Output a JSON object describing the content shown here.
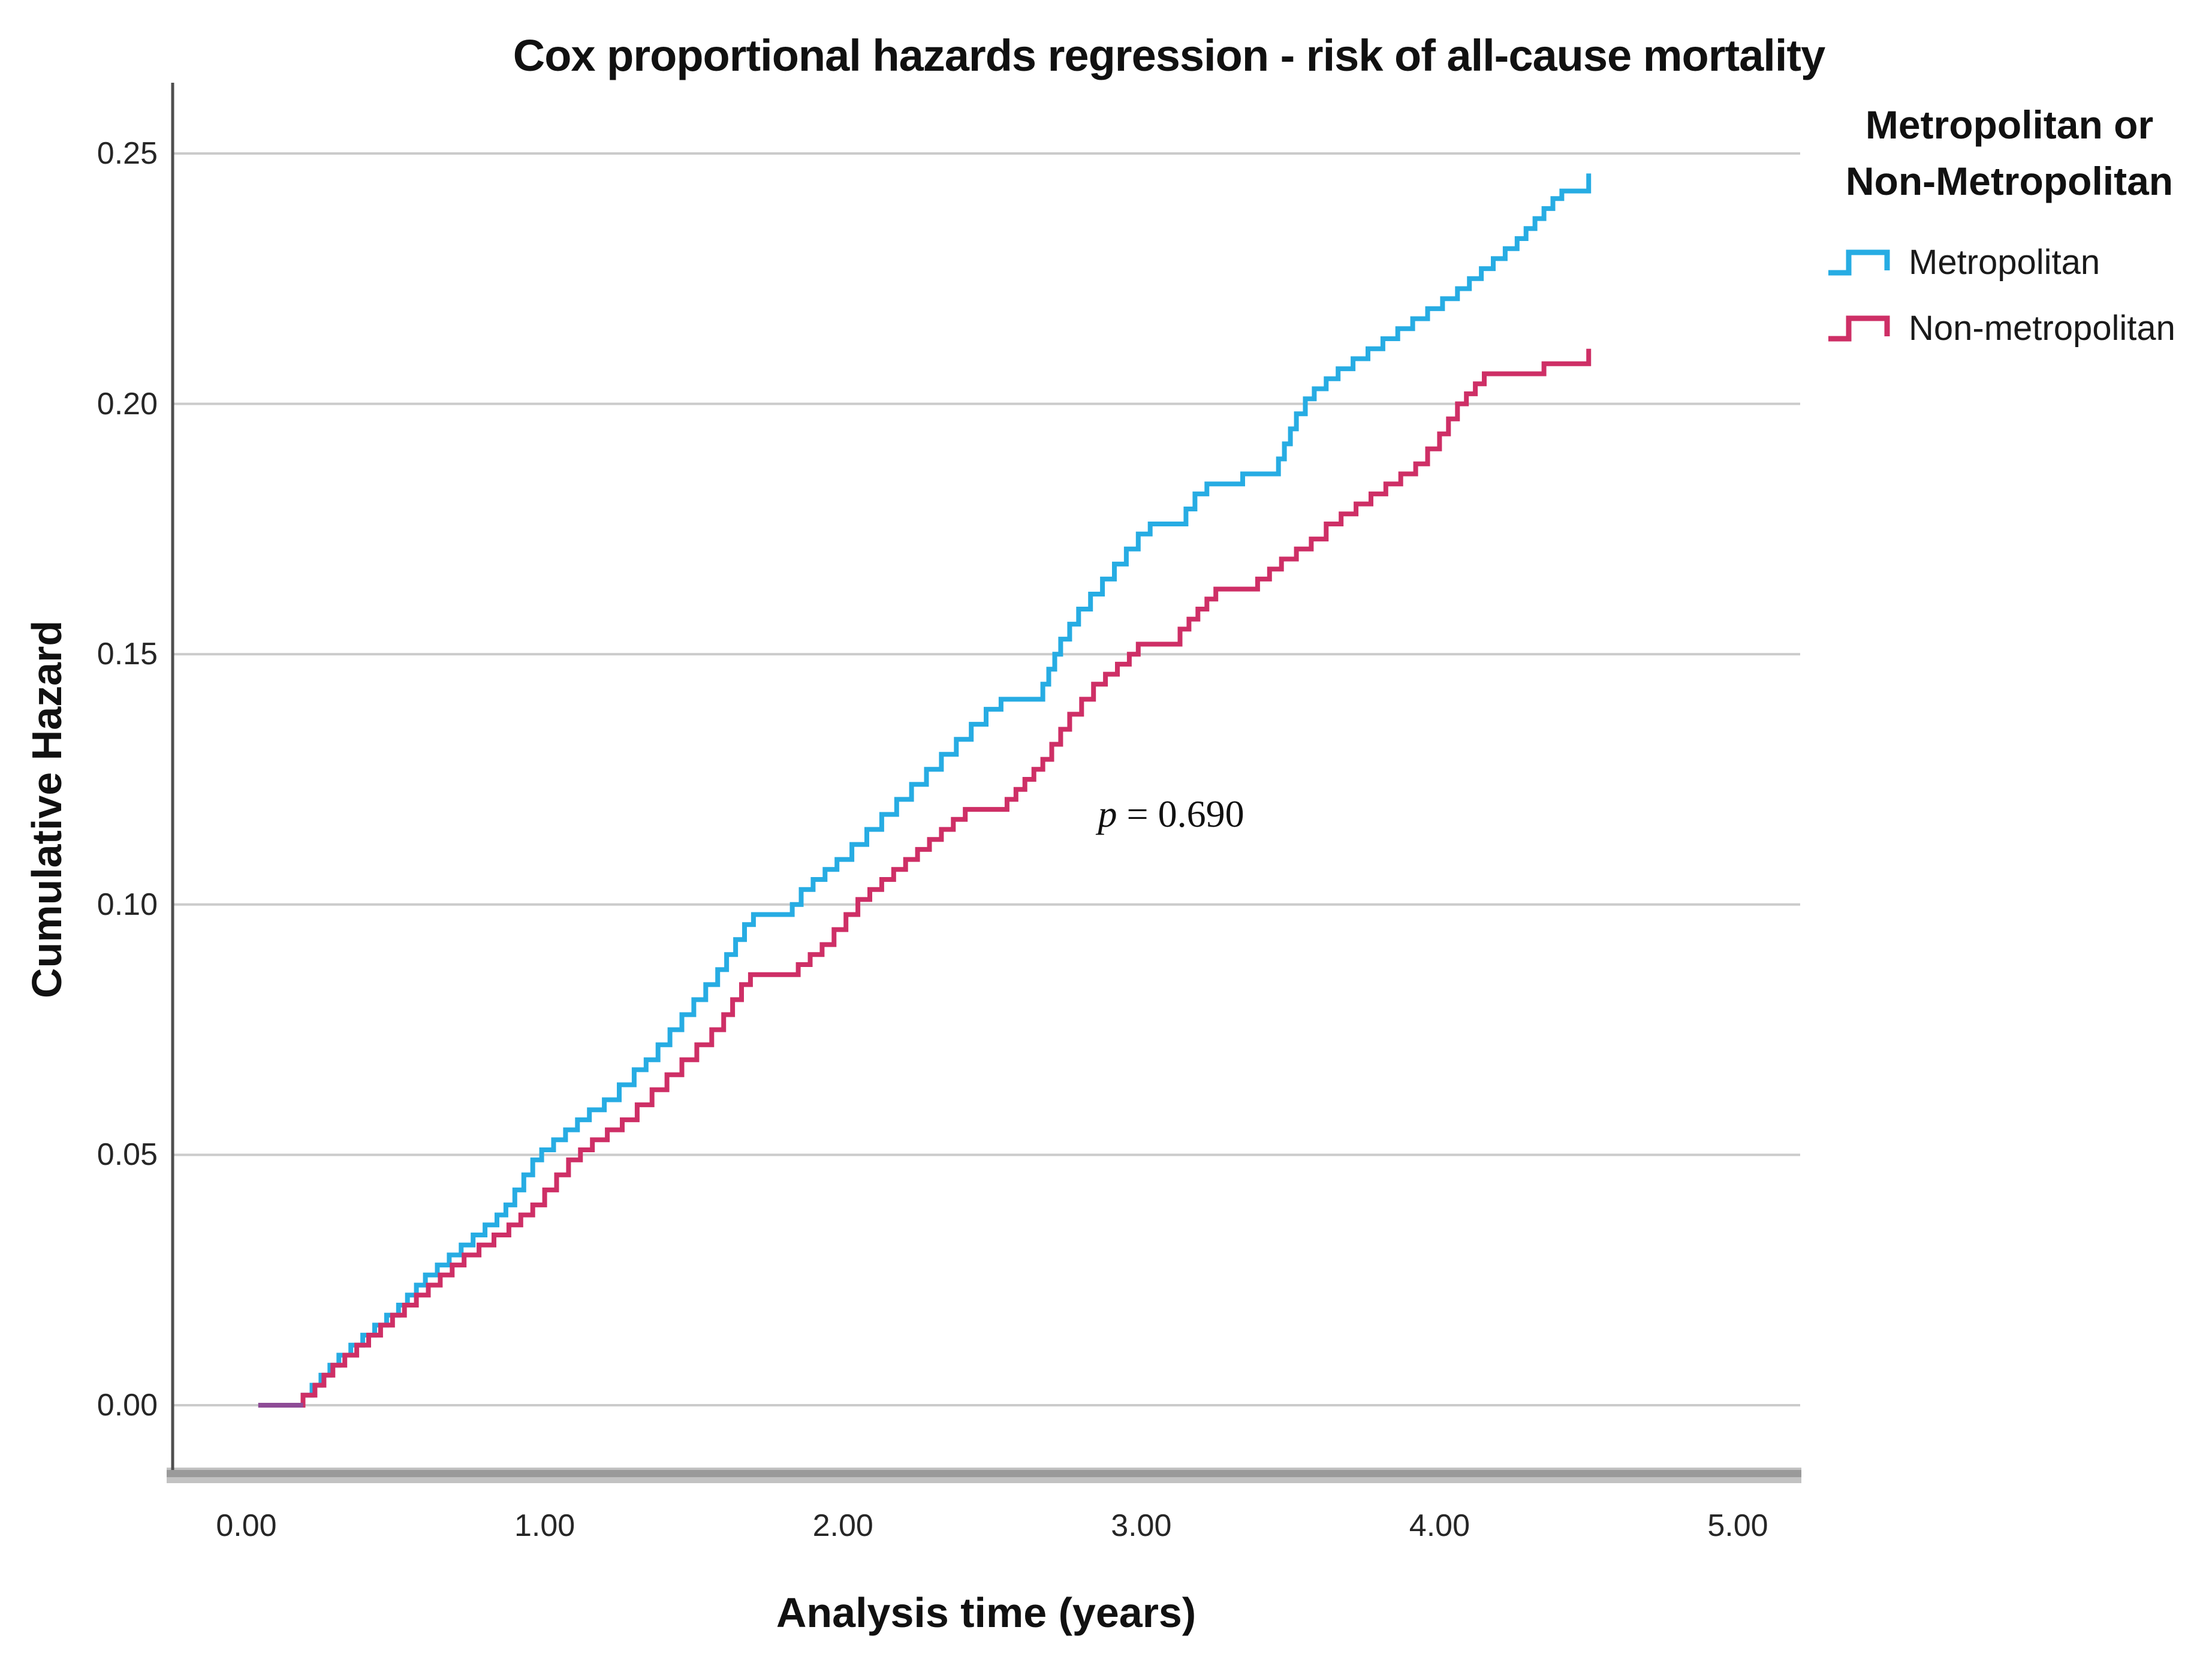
{
  "chart_data": {
    "type": "line",
    "subtype": "step",
    "title": "Cox proportional hazards regression - risk of all-cause mortality",
    "xlabel": "Analysis time (years)",
    "ylabel": "Cumulative Hazard",
    "xlim": [
      -0.25,
      5.6
    ],
    "ylim": [
      -0.014,
      0.264
    ],
    "grid": "horizontal-only",
    "x_ticks": [
      "0.00",
      "1.00",
      "2.00",
      "3.00",
      "4.00",
      "5.00"
    ],
    "x_tick_values": [
      0,
      1,
      2,
      3,
      4,
      5
    ],
    "y_ticks": [
      "0.00",
      "0.05",
      "0.10",
      "0.15",
      "0.20",
      "0.25"
    ],
    "y_tick_values": [
      0,
      0.05,
      0.1,
      0.15,
      0.2,
      0.25
    ],
    "grid_color": "#cbcbcb",
    "axis_color": "#4f4f4f",
    "axis_bar_color": "#9a9a9a",
    "annotation": {
      "text": "p = 0.690",
      "prefix": "p",
      "rest": " = 0.690",
      "x": 3.1,
      "y": 0.118
    },
    "legend": {
      "position": "right",
      "title_lines": [
        "Metropolitan or",
        "Non-Metropolitan"
      ],
      "entries": [
        {
          "label": "Metropolitan",
          "color": "#27ACE3"
        },
        {
          "label": "Non-metropolitan",
          "color": "#CE2F66"
        }
      ]
    },
    "overlap": {
      "x_start": 0.04,
      "x_end": 0.19,
      "y": 0,
      "color": "#8E4B96"
    },
    "series": [
      {
        "name": "Metropolitan",
        "color": "#27ACE3",
        "points": [
          [
            0.04,
            0.0
          ],
          [
            0.19,
            0.002
          ],
          [
            0.22,
            0.004
          ],
          [
            0.25,
            0.006
          ],
          [
            0.28,
            0.008
          ],
          [
            0.31,
            0.01
          ],
          [
            0.35,
            0.012
          ],
          [
            0.39,
            0.014
          ],
          [
            0.43,
            0.016
          ],
          [
            0.47,
            0.018
          ],
          [
            0.51,
            0.02
          ],
          [
            0.54,
            0.022
          ],
          [
            0.57,
            0.024
          ],
          [
            0.6,
            0.026
          ],
          [
            0.64,
            0.028
          ],
          [
            0.68,
            0.03
          ],
          [
            0.72,
            0.032
          ],
          [
            0.76,
            0.034
          ],
          [
            0.8,
            0.036
          ],
          [
            0.84,
            0.038
          ],
          [
            0.87,
            0.04
          ],
          [
            0.9,
            0.043
          ],
          [
            0.93,
            0.046
          ],
          [
            0.96,
            0.049
          ],
          [
            0.99,
            0.051
          ],
          [
            1.03,
            0.053
          ],
          [
            1.07,
            0.055
          ],
          [
            1.11,
            0.057
          ],
          [
            1.15,
            0.059
          ],
          [
            1.2,
            0.061
          ],
          [
            1.25,
            0.064
          ],
          [
            1.3,
            0.067
          ],
          [
            1.34,
            0.069
          ],
          [
            1.38,
            0.072
          ],
          [
            1.42,
            0.075
          ],
          [
            1.46,
            0.078
          ],
          [
            1.5,
            0.081
          ],
          [
            1.54,
            0.084
          ],
          [
            1.58,
            0.087
          ],
          [
            1.61,
            0.09
          ],
          [
            1.64,
            0.093
          ],
          [
            1.67,
            0.096
          ],
          [
            1.7,
            0.098
          ],
          [
            1.83,
            0.1
          ],
          [
            1.86,
            0.103
          ],
          [
            1.9,
            0.105
          ],
          [
            1.94,
            0.107
          ],
          [
            1.98,
            0.109
          ],
          [
            2.03,
            0.112
          ],
          [
            2.08,
            0.115
          ],
          [
            2.13,
            0.118
          ],
          [
            2.18,
            0.121
          ],
          [
            2.23,
            0.124
          ],
          [
            2.28,
            0.127
          ],
          [
            2.33,
            0.13
          ],
          [
            2.38,
            0.133
          ],
          [
            2.43,
            0.136
          ],
          [
            2.48,
            0.139
          ],
          [
            2.53,
            0.141
          ],
          [
            2.67,
            0.144
          ],
          [
            2.69,
            0.147
          ],
          [
            2.71,
            0.15
          ],
          [
            2.73,
            0.153
          ],
          [
            2.76,
            0.156
          ],
          [
            2.79,
            0.159
          ],
          [
            2.83,
            0.162
          ],
          [
            2.87,
            0.165
          ],
          [
            2.91,
            0.168
          ],
          [
            2.95,
            0.171
          ],
          [
            2.99,
            0.174
          ],
          [
            3.03,
            0.176
          ],
          [
            3.15,
            0.179
          ],
          [
            3.18,
            0.182
          ],
          [
            3.22,
            0.184
          ],
          [
            3.34,
            0.186
          ],
          [
            3.46,
            0.189
          ],
          [
            3.48,
            0.192
          ],
          [
            3.5,
            0.195
          ],
          [
            3.52,
            0.198
          ],
          [
            3.55,
            0.201
          ],
          [
            3.58,
            0.203
          ],
          [
            3.62,
            0.205
          ],
          [
            3.66,
            0.207
          ],
          [
            3.71,
            0.209
          ],
          [
            3.76,
            0.211
          ],
          [
            3.81,
            0.213
          ],
          [
            3.86,
            0.215
          ],
          [
            3.91,
            0.217
          ],
          [
            3.96,
            0.219
          ],
          [
            4.01,
            0.221
          ],
          [
            4.06,
            0.223
          ],
          [
            4.1,
            0.225
          ],
          [
            4.14,
            0.227
          ],
          [
            4.18,
            0.229
          ],
          [
            4.22,
            0.231
          ],
          [
            4.26,
            0.233
          ],
          [
            4.29,
            0.235
          ],
          [
            4.32,
            0.237
          ],
          [
            4.35,
            0.239
          ],
          [
            4.38,
            0.241
          ],
          [
            4.41,
            0.2425
          ],
          [
            4.5,
            0.246
          ]
        ]
      },
      {
        "name": "Non-metropolitan",
        "color": "#CE2F66",
        "points": [
          [
            0.04,
            0.0
          ],
          [
            0.19,
            0.002
          ],
          [
            0.23,
            0.004
          ],
          [
            0.26,
            0.006
          ],
          [
            0.29,
            0.008
          ],
          [
            0.33,
            0.01
          ],
          [
            0.37,
            0.012
          ],
          [
            0.41,
            0.014
          ],
          [
            0.45,
            0.016
          ],
          [
            0.49,
            0.018
          ],
          [
            0.53,
            0.02
          ],
          [
            0.57,
            0.022
          ],
          [
            0.61,
            0.024
          ],
          [
            0.65,
            0.026
          ],
          [
            0.69,
            0.028
          ],
          [
            0.73,
            0.03
          ],
          [
            0.78,
            0.032
          ],
          [
            0.83,
            0.034
          ],
          [
            0.88,
            0.036
          ],
          [
            0.92,
            0.038
          ],
          [
            0.96,
            0.04
          ],
          [
            1.0,
            0.043
          ],
          [
            1.04,
            0.046
          ],
          [
            1.08,
            0.049
          ],
          [
            1.12,
            0.051
          ],
          [
            1.16,
            0.053
          ],
          [
            1.21,
            0.055
          ],
          [
            1.26,
            0.057
          ],
          [
            1.31,
            0.06
          ],
          [
            1.36,
            0.063
          ],
          [
            1.41,
            0.066
          ],
          [
            1.46,
            0.069
          ],
          [
            1.51,
            0.072
          ],
          [
            1.56,
            0.075
          ],
          [
            1.6,
            0.078
          ],
          [
            1.63,
            0.081
          ],
          [
            1.66,
            0.084
          ],
          [
            1.69,
            0.086
          ],
          [
            1.85,
            0.088
          ],
          [
            1.89,
            0.09
          ],
          [
            1.93,
            0.092
          ],
          [
            1.97,
            0.095
          ],
          [
            2.01,
            0.098
          ],
          [
            2.05,
            0.101
          ],
          [
            2.09,
            0.103
          ],
          [
            2.13,
            0.105
          ],
          [
            2.17,
            0.107
          ],
          [
            2.21,
            0.109
          ],
          [
            2.25,
            0.111
          ],
          [
            2.29,
            0.113
          ],
          [
            2.33,
            0.115
          ],
          [
            2.37,
            0.117
          ],
          [
            2.41,
            0.119
          ],
          [
            2.55,
            0.121
          ],
          [
            2.58,
            0.123
          ],
          [
            2.61,
            0.125
          ],
          [
            2.64,
            0.127
          ],
          [
            2.67,
            0.129
          ],
          [
            2.7,
            0.132
          ],
          [
            2.73,
            0.135
          ],
          [
            2.76,
            0.138
          ],
          [
            2.8,
            0.141
          ],
          [
            2.84,
            0.144
          ],
          [
            2.88,
            0.146
          ],
          [
            2.92,
            0.148
          ],
          [
            2.96,
            0.15
          ],
          [
            2.99,
            0.152
          ],
          [
            3.13,
            0.155
          ],
          [
            3.16,
            0.157
          ],
          [
            3.19,
            0.159
          ],
          [
            3.22,
            0.161
          ],
          [
            3.25,
            0.163
          ],
          [
            3.39,
            0.165
          ],
          [
            3.43,
            0.167
          ],
          [
            3.47,
            0.169
          ],
          [
            3.52,
            0.171
          ],
          [
            3.57,
            0.173
          ],
          [
            3.62,
            0.176
          ],
          [
            3.67,
            0.178
          ],
          [
            3.72,
            0.18
          ],
          [
            3.77,
            0.182
          ],
          [
            3.82,
            0.184
          ],
          [
            3.87,
            0.186
          ],
          [
            3.92,
            0.188
          ],
          [
            3.96,
            0.191
          ],
          [
            4.0,
            0.194
          ],
          [
            4.03,
            0.197
          ],
          [
            4.06,
            0.2
          ],
          [
            4.09,
            0.202
          ],
          [
            4.12,
            0.204
          ],
          [
            4.15,
            0.206
          ],
          [
            4.35,
            0.208
          ],
          [
            4.5,
            0.211
          ]
        ]
      }
    ]
  }
}
